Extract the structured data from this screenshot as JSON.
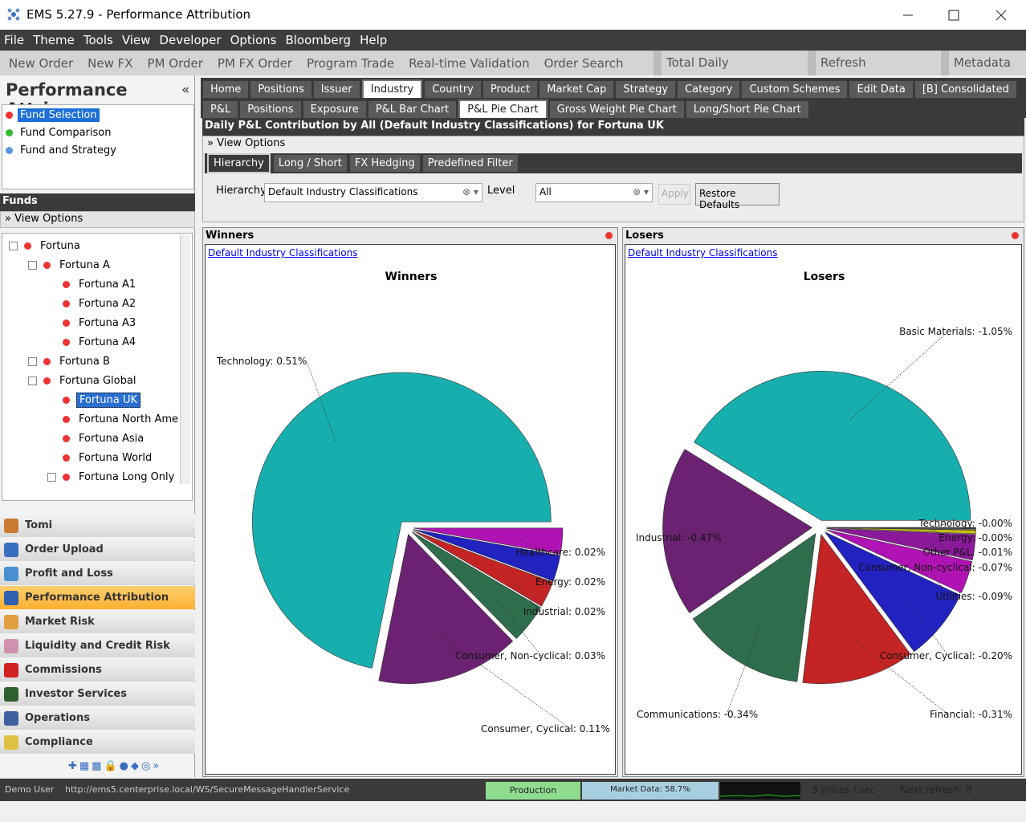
{
  "window": {
    "title": "EMS 5.27.9 - Performance Attribution"
  },
  "menu": [
    "File",
    "Theme",
    "Tools",
    "View",
    "Developer",
    "Options",
    "Bloomberg",
    "Help"
  ],
  "toolbar": [
    "New Order",
    "New FX",
    "PM Order",
    "PM FX Order",
    "Program Trade",
    "Real-time Validation",
    "Order Search"
  ],
  "toolbar_right": [
    "Total Daily",
    "Refresh",
    "Metadata"
  ],
  "sidebar": {
    "title": "Performance Attri...",
    "nav": [
      "Fund Selection",
      "Fund Comparison",
      "Fund and Strategy"
    ],
    "funds_header": "Funds",
    "view_options": "View Options",
    "tree": [
      {
        "label": "Fortuna",
        "children": [
          {
            "label": "Fortuna A",
            "children": [
              {
                "label": "Fortuna A1"
              },
              {
                "label": "Fortuna A2"
              },
              {
                "label": "Fortuna A3"
              },
              {
                "label": "Fortuna A4"
              }
            ]
          },
          {
            "label": "Fortuna B"
          },
          {
            "label": "Fortuna Global",
            "children": [
              {
                "label": "Fortuna UK"
              },
              {
                "label": "Fortuna North Ame"
              },
              {
                "label": "Fortuna Asia"
              },
              {
                "label": "Fortuna World"
              },
              {
                "label": "Fortuna Long Only"
              }
            ]
          }
        ]
      }
    ],
    "modules": [
      "Tomi",
      "Order Upload",
      "Profit and Loss",
      "Performance Attribution",
      "Market Risk",
      "Liquidity and Credit Risk",
      "Commissions",
      "Investor Services",
      "Operations",
      "Compliance"
    ]
  },
  "tabs_top": [
    "Home",
    "Positions",
    "Issuer",
    "Industry",
    "Country",
    "Product",
    "Market Cap",
    "Strategy",
    "Category",
    "Custom Schemes",
    "Edit Data",
    "[B] Consolidated"
  ],
  "tabs_sub": [
    "P&L",
    "Positions",
    "Exposure",
    "P&L Bar Chart",
    "P&L Pie Chart",
    "Gross Weight Pie Chart",
    "Long/Short Pie Chart"
  ],
  "content": {
    "header": "Daily P&L Contribution by All (Default Industry Classifications) for Fortuna UK",
    "view_options": "View Options",
    "option_tabs": [
      "Hierarchy",
      "Long / Short",
      "FX Hedging",
      "Predefined Filter"
    ],
    "hierarchy_label": "Hierarchy",
    "hierarchy_value": "Default Industry Classifications",
    "level_label": "Level",
    "level_value": "All",
    "apply": "Apply",
    "restore": "Restore Defaults"
  },
  "panels": [
    {
      "title": "Winners",
      "link": "Default Industry Classifications"
    },
    {
      "title": "Losers",
      "link": "Default Industry Classifications"
    }
  ],
  "chart_data": [
    {
      "type": "pie",
      "title": "Winners",
      "values": [
        0.51,
        0.11,
        0.03,
        0.02,
        0.02,
        0.02
      ],
      "value_labels": [
        "Technology: 0.51%",
        "Consumer, Cyclical: 0.11%",
        "Consumer, Non-cyclical: 0.03%",
        "Industrial: 0.02%",
        "Energy: 0.02%",
        "Healthcare: 0.02%"
      ],
      "colors": [
        "#17aeae",
        "#6b2272",
        "#2f6e4c",
        "#c42424",
        "#2222c0",
        "#b012b4"
      ]
    },
    {
      "type": "pie",
      "title": "Losers",
      "values": [
        -1.05,
        -0.47,
        -0.34,
        -0.31,
        -0.2,
        -0.09,
        -0.07,
        -0.01,
        -0.004,
        -0.003
      ],
      "value_labels": [
        "Basic Materials: -1.05%",
        "Industrial: -0.47%",
        "Communications: -0.34%",
        "Financial: -0.31%",
        "Consumer, Cyclical: -0.20%",
        "Utilities: -0.09%",
        "Consumer, Non-cyclical: -0.07%",
        "Other P&L: -0.01%",
        "Energy: -0.00%",
        "Technology: -0.00%"
      ],
      "colors": [
        "#17aeae",
        "#6b2272",
        "#2f6e4c",
        "#c42424",
        "#2222c0",
        "#b012b4",
        "#8a1a9a",
        "#c8c010",
        "#707070",
        "#303030"
      ]
    }
  ],
  "status": {
    "user": "Demo User",
    "url": "http://ems5.centerprise.local/WS/SecureMessageHandlerService",
    "mode": "Production",
    "market": "Market Data: 58.7%",
    "prices": "3 prices / sec",
    "refresh": "Next refresh: 8"
  }
}
